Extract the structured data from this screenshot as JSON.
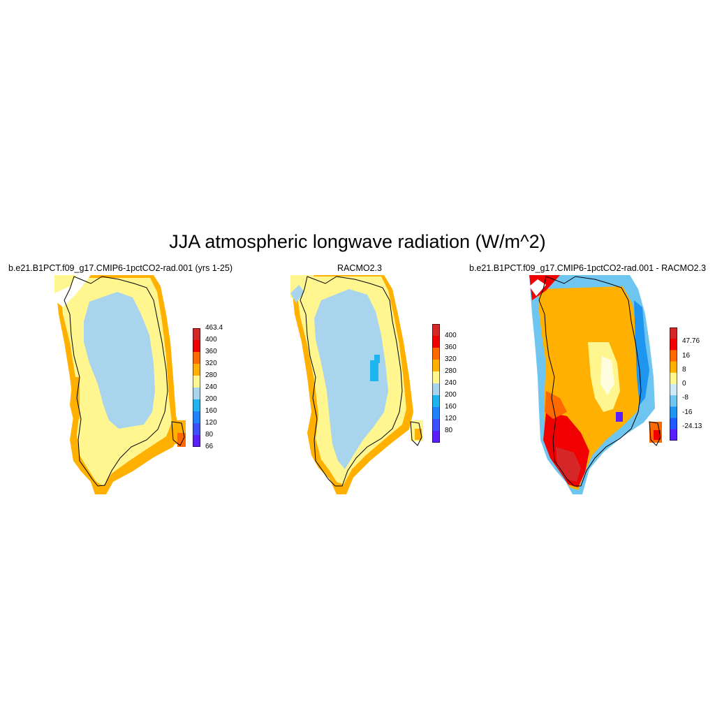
{
  "figure": {
    "title": "JJA atmospheric longwave radiation (W/m^2)"
  },
  "panels": [
    {
      "id": "model",
      "title": "b.e21.B1PCT.f09_g17.CMIP6-1pctCO2-rad.001 (yrs 1-25)",
      "colorbar": {
        "labels": [
          "463.4",
          "400",
          "360",
          "320",
          "280",
          "240",
          "200",
          "160",
          "120",
          "80",
          "66"
        ],
        "colors": [
          "#d62728",
          "#f00000",
          "#ff6a00",
          "#ffb000",
          "#fff68f",
          "#a8d4ee",
          "#1eb4f0",
          "#1e82ff",
          "#3c50ff",
          "#5a1eff"
        ]
      }
    },
    {
      "id": "obs",
      "title": "RACMO2.3",
      "colorbar": {
        "labels": [
          "400",
          "360",
          "320",
          "280",
          "240",
          "200",
          "160",
          "120",
          "80"
        ],
        "colors": [
          "#d62728",
          "#f00000",
          "#ff6a00",
          "#ffb000",
          "#fff68f",
          "#a8d4ee",
          "#1eb4f0",
          "#1e82ff",
          "#3c50ff",
          "#5a1eff"
        ]
      }
    },
    {
      "id": "diff",
      "title": "b.e21.B1PCT.f09_g17.CMIP6-1pctCO2-rad.001 - RACMO2.3",
      "colorbar": {
        "labels": [
          "47.76",
          "16",
          "8",
          "0",
          "-8",
          "-16",
          "-24.13"
        ],
        "colors": [
          "#d62728",
          "#f00000",
          "#ff6a00",
          "#ffb000",
          "#fff68f",
          "#cfeaf7",
          "#6ec6f0",
          "#1e96f0",
          "#1e5aff",
          "#5a1eff"
        ]
      }
    }
  ]
}
